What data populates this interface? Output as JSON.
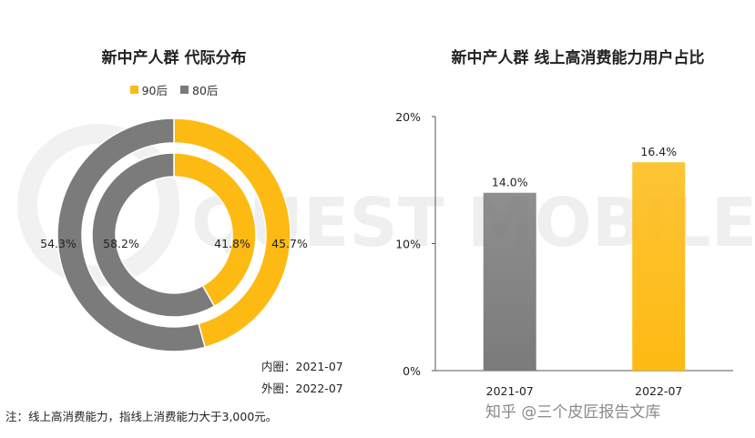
{
  "watermark_text": "QUEST MOBILE",
  "footnote": "注：线上高消费能力，指线上消费能力大于3,000元。",
  "credit": "知乎 @三个皮匠报告文库",
  "colors": {
    "yellow": "#FDBA12",
    "gray": "#7B7B7B",
    "axis": "#555555"
  },
  "chart_data": [
    {
      "type": "pie",
      "subtype": "nested-donut",
      "title": "新中产人群 代际分布",
      "legend": [
        "90后",
        "80后"
      ],
      "legend_position": "top",
      "rings": [
        {
          "name": "inner",
          "note": "内圈：2021-07",
          "slices": [
            {
              "label": "90后",
              "value": 41.8,
              "value_label": "41.8%",
              "color": "#FDBA12"
            },
            {
              "label": "80后",
              "value": 58.2,
              "value_label": "58.2%",
              "color": "#7B7B7B"
            }
          ]
        },
        {
          "name": "outer",
          "note": "外圈：2022-07",
          "slices": [
            {
              "label": "90后",
              "value": 45.7,
              "value_label": "45.7%",
              "color": "#FDBA12"
            },
            {
              "label": "80后",
              "value": 54.3,
              "value_label": "54.3%",
              "color": "#7B7B7B"
            }
          ]
        }
      ]
    },
    {
      "type": "bar",
      "title": "新中产人群 线上高消费能力用户占比",
      "categories": [
        "2021-07",
        "2022-07"
      ],
      "values": [
        14.0,
        16.4
      ],
      "value_labels": [
        "14.0%",
        "16.4%"
      ],
      "bar_colors": [
        "#7B7B7B",
        "#FDBA12"
      ],
      "ylim": [
        0,
        20
      ],
      "yticks": [
        0,
        10,
        20
      ],
      "ytick_labels": [
        "0%",
        "10%",
        "20%"
      ],
      "grid": false
    }
  ]
}
